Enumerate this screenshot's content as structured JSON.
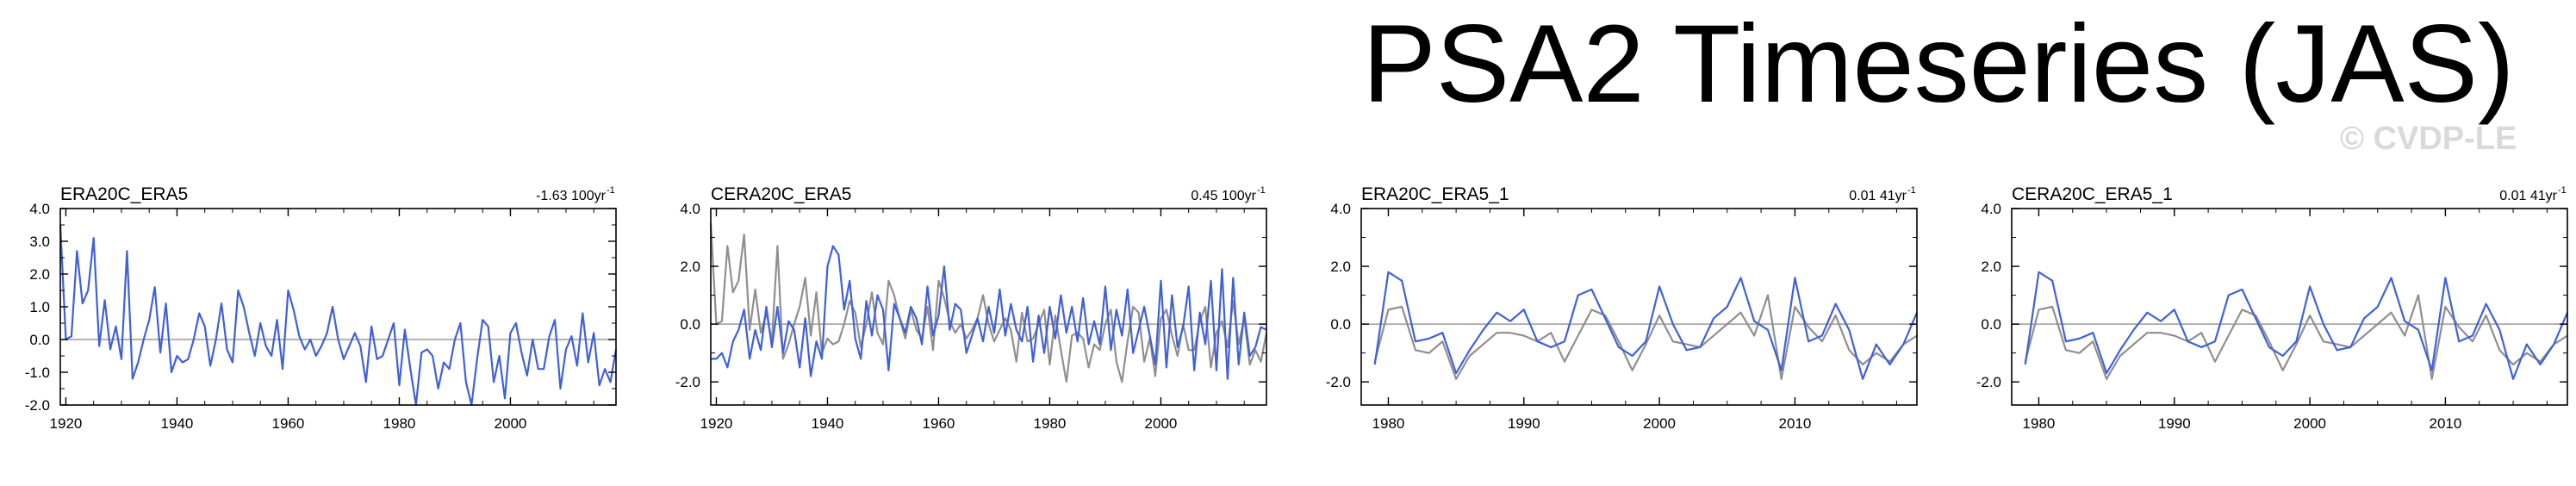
{
  "title": "PSA2 Timeseries (JAS)",
  "copyright": "© CVDP-LE",
  "colors": {
    "primary": "#4060d8",
    "secondary": "#8f8f8f",
    "zero_line": "#9a9a9a",
    "frame": "#000000"
  },
  "chart_data": [
    {
      "type": "line",
      "title": "ERA20C_ERA5",
      "trend": "-1.63 100yr",
      "trend_sup": "-1",
      "xlabel": "",
      "ylabel": "",
      "xlim": [
        1919,
        2019
      ],
      "ylim": [
        -2.0,
        4.0
      ],
      "xticks": [
        1920,
        1940,
        1960,
        1980,
        2000
      ],
      "yticks": [
        4.0,
        3.0,
        2.0,
        1.0,
        0.0,
        -1.0,
        -2.0
      ],
      "grid": false,
      "zero_line": true,
      "series": [
        {
          "role": "primary",
          "x": [
            1919,
            1920,
            1921,
            1922,
            1923,
            1924,
            1925,
            1926,
            1927,
            1928,
            1929,
            1930,
            1931,
            1932,
            1933,
            1934,
            1935,
            1936,
            1937,
            1938,
            1939,
            1940,
            1941,
            1942,
            1943,
            1944,
            1945,
            1946,
            1947,
            1948,
            1949,
            1950,
            1951,
            1952,
            1953,
            1954,
            1955,
            1956,
            1957,
            1958,
            1959,
            1960,
            1961,
            1962,
            1963,
            1964,
            1965,
            1966,
            1967,
            1968,
            1969,
            1970,
            1971,
            1972,
            1973,
            1974,
            1975,
            1976,
            1977,
            1978,
            1979,
            1980,
            1981,
            1982,
            1983,
            1984,
            1985,
            1986,
            1987,
            1988,
            1989,
            1990,
            1991,
            1992,
            1993,
            1994,
            1995,
            1996,
            1997,
            1998,
            1999,
            2000,
            2001,
            2002,
            2003,
            2004,
            2005,
            2006,
            2007,
            2008,
            2009,
            2010,
            2011,
            2012,
            2013,
            2014,
            2015,
            2016,
            2017,
            2018,
            2019
          ],
          "y": [
            3.5,
            0.0,
            0.1,
            2.7,
            1.1,
            1.5,
            3.1,
            -0.2,
            1.2,
            -0.3,
            0.4,
            -0.6,
            2.7,
            -1.2,
            -0.7,
            0.0,
            0.6,
            1.6,
            -0.4,
            1.1,
            -1.0,
            -0.5,
            -0.7,
            -0.6,
            0.0,
            0.8,
            0.4,
            -0.8,
            0.0,
            1.1,
            -0.3,
            -0.7,
            1.5,
            1.0,
            0.2,
            -0.5,
            0.5,
            -0.2,
            -0.5,
            0.6,
            -0.9,
            1.5,
            0.9,
            0.1,
            -0.3,
            0.0,
            -0.5,
            -0.2,
            0.2,
            1.0,
            0.0,
            -0.6,
            -0.2,
            0.2,
            -0.2,
            -1.3,
            0.4,
            -0.6,
            -0.5,
            0.0,
            0.5,
            -1.4,
            0.3,
            -0.9,
            -2.0,
            -0.4,
            -0.3,
            -0.5,
            -1.5,
            -0.7,
            -0.9,
            0.0,
            0.5,
            -1.3,
            -2.0,
            -0.6,
            0.6,
            0.4,
            -1.3,
            -0.5,
            -1.8,
            0.2,
            0.5,
            -0.4,
            -1.1,
            0.0,
            -0.9,
            -0.9,
            0.1,
            0.6,
            -1.5,
            -0.3,
            0.1,
            -0.8,
            0.8,
            -0.7,
            0.2,
            -1.4,
            -0.9,
            -1.3,
            -0.3
          ]
        }
      ]
    },
    {
      "type": "line",
      "title": "CERA20C_ERA5",
      "trend": "0.45 100yr",
      "trend_sup": "-1",
      "xlabel": "",
      "ylabel": "",
      "xlim": [
        1919,
        2019
      ],
      "ylim": [
        -2.8,
        4.0
      ],
      "xticks": [
        1920,
        1940,
        1960,
        1980,
        2000
      ],
      "yticks": [
        4.0,
        2.0,
        0.0,
        -2.0
      ],
      "grid": false,
      "zero_line": true,
      "series": [
        {
          "role": "secondary",
          "x": [
            1919,
            1920,
            1921,
            1922,
            1923,
            1924,
            1925,
            1926,
            1927,
            1928,
            1929,
            1930,
            1931,
            1932,
            1933,
            1934,
            1935,
            1936,
            1937,
            1938,
            1939,
            1940,
            1941,
            1942,
            1943,
            1944,
            1945,
            1946,
            1947,
            1948,
            1949,
            1950,
            1951,
            1952,
            1953,
            1954,
            1955,
            1956,
            1957,
            1958,
            1959,
            1960,
            1961,
            1962,
            1963,
            1964,
            1965,
            1966,
            1967,
            1968,
            1969,
            1970,
            1971,
            1972,
            1973,
            1974,
            1975,
            1976,
            1977,
            1978,
            1979,
            1980,
            1981,
            1982,
            1983,
            1984,
            1985,
            1986,
            1987,
            1988,
            1989,
            1990,
            1991,
            1992,
            1993,
            1994,
            1995,
            1996,
            1997,
            1998,
            1999,
            2000,
            2001,
            2002,
            2003,
            2004,
            2005,
            2006,
            2007,
            2008,
            2009,
            2010,
            2011,
            2012,
            2013,
            2014,
            2015,
            2016,
            2017,
            2018,
            2019
          ],
          "y": [
            3.5,
            0.0,
            0.1,
            2.7,
            1.1,
            1.5,
            3.1,
            -0.2,
            1.2,
            -0.3,
            0.4,
            -0.6,
            2.7,
            -1.2,
            -0.7,
            0.0,
            0.6,
            1.6,
            -0.4,
            1.1,
            -1.0,
            -0.5,
            -0.7,
            -0.6,
            0.0,
            0.8,
            0.4,
            -0.8,
            0.0,
            1.1,
            -0.3,
            -0.7,
            1.5,
            1.0,
            0.2,
            -0.5,
            0.5,
            -0.2,
            -0.5,
            0.6,
            -0.9,
            1.5,
            0.9,
            0.1,
            -0.3,
            0.0,
            -0.5,
            -0.2,
            0.2,
            1.0,
            0.0,
            -0.6,
            -0.2,
            0.2,
            -0.2,
            -1.3,
            0.4,
            -0.6,
            -0.5,
            0.0,
            0.5,
            -1.4,
            0.3,
            -0.9,
            -2.0,
            -0.4,
            -0.3,
            -0.5,
            -1.5,
            -0.7,
            -0.9,
            0.0,
            0.5,
            -1.3,
            -2.0,
            -0.6,
            0.6,
            0.4,
            -1.3,
            -0.5,
            -1.8,
            0.2,
            0.5,
            -0.4,
            -1.1,
            0.0,
            -0.9,
            -0.9,
            0.1,
            0.6,
            -1.5,
            -0.3,
            0.1,
            -0.8,
            0.8,
            -0.7,
            0.2,
            -1.4,
            -0.9,
            -1.3,
            -0.3
          ]
        },
        {
          "role": "primary",
          "x": [
            1919,
            1920,
            1921,
            1922,
            1923,
            1924,
            1925,
            1926,
            1927,
            1928,
            1929,
            1930,
            1931,
            1932,
            1933,
            1934,
            1935,
            1936,
            1937,
            1938,
            1939,
            1940,
            1941,
            1942,
            1943,
            1944,
            1945,
            1946,
            1947,
            1948,
            1949,
            1950,
            1951,
            1952,
            1953,
            1954,
            1955,
            1956,
            1957,
            1958,
            1959,
            1960,
            1961,
            1962,
            1963,
            1964,
            1965,
            1966,
            1967,
            1968,
            1969,
            1970,
            1971,
            1972,
            1973,
            1974,
            1975,
            1976,
            1977,
            1978,
            1979,
            1980,
            1981,
            1982,
            1983,
            1984,
            1985,
            1986,
            1987,
            1988,
            1989,
            1990,
            1991,
            1992,
            1993,
            1994,
            1995,
            1996,
            1997,
            1998,
            1999,
            2000,
            2001,
            2002,
            2003,
            2004,
            2005,
            2006,
            2007,
            2008,
            2009,
            2010,
            2011,
            2012,
            2013,
            2014,
            2015,
            2016,
            2017,
            2018,
            2019
          ],
          "y": [
            -1.2,
            -1.2,
            -1.0,
            -1.5,
            -0.6,
            -0.2,
            0.5,
            -1.2,
            -0.2,
            -0.9,
            0.6,
            -0.8,
            0.6,
            -1.0,
            0.1,
            -0.2,
            -1.5,
            0.2,
            -1.8,
            -0.6,
            -1.2,
            2.0,
            2.7,
            2.4,
            0.5,
            1.5,
            -0.5,
            -1.2,
            0.8,
            -0.4,
            1.0,
            0.5,
            -1.6,
            0.7,
            0.2,
            -0.3,
            0.6,
            0.2,
            -0.7,
            1.3,
            -0.4,
            0.3,
            2.0,
            -0.2,
            0.7,
            0.5,
            -1.0,
            -0.4,
            0.2,
            -0.6,
            0.6,
            -0.3,
            1.2,
            -0.4,
            0.7,
            -0.2,
            -0.6,
            0.6,
            -1.3,
            0.3,
            -1.0,
            0.6,
            -0.5,
            1.0,
            -0.3,
            0.6,
            -0.6,
            0.9,
            -0.7,
            0.1,
            -0.7,
            1.3,
            -0.9,
            0.5,
            -0.4,
            1.2,
            -1.0,
            -0.2,
            0.6,
            -0.4,
            -1.4,
            1.5,
            -1.5,
            1.0,
            -0.8,
            -0.1,
            1.3,
            -1.6,
            0.4,
            -0.7,
            1.5,
            -1.6,
            1.9,
            -1.9,
            1.6,
            -1.4,
            0.4,
            -1.1,
            -0.8,
            -0.1,
            -0.2
          ]
        }
      ]
    },
    {
      "type": "line",
      "title": "ERA20C_ERA5_1",
      "trend": "0.01 41yr",
      "trend_sup": "-1",
      "xlabel": "",
      "ylabel": "",
      "xlim": [
        1978,
        2019
      ],
      "ylim": [
        -2.8,
        4.0
      ],
      "xticks": [
        1980,
        1990,
        2000,
        2010
      ],
      "yticks": [
        4.0,
        2.0,
        0.0,
        -2.0
      ],
      "grid": false,
      "zero_line": true,
      "series": [
        {
          "role": "secondary",
          "x": [
            1979,
            1980,
            1981,
            1982,
            1983,
            1984,
            1985,
            1986,
            1987,
            1988,
            1989,
            1990,
            1991,
            1992,
            1993,
            1994,
            1995,
            1996,
            1997,
            1998,
            1999,
            2000,
            2001,
            2002,
            2003,
            2004,
            2005,
            2006,
            2007,
            2008,
            2009,
            2010,
            2011,
            2012,
            2013,
            2014,
            2015,
            2016,
            2017,
            2018,
            2019
          ],
          "y": [
            -1.3,
            0.5,
            0.6,
            -0.9,
            -1.0,
            -0.6,
            -1.9,
            -1.1,
            -0.7,
            -0.3,
            -0.3,
            -0.4,
            -0.6,
            -0.3,
            -1.3,
            -0.4,
            0.5,
            0.3,
            -0.6,
            -1.6,
            -0.7,
            0.3,
            -0.6,
            -0.7,
            -0.8,
            -0.4,
            0.0,
            0.4,
            -0.4,
            1.0,
            -1.9,
            0.6,
            -0.1,
            -0.6,
            0.3,
            -0.9,
            -1.4,
            -1.0,
            -1.3,
            -0.7,
            -0.4
          ]
        },
        {
          "role": "primary",
          "x": [
            1979,
            1980,
            1981,
            1982,
            1983,
            1984,
            1985,
            1986,
            1987,
            1988,
            1989,
            1990,
            1991,
            1992,
            1993,
            1994,
            1995,
            1996,
            1997,
            1998,
            1999,
            2000,
            2001,
            2002,
            2003,
            2004,
            2005,
            2006,
            2007,
            2008,
            2009,
            2010,
            2011,
            2012,
            2013,
            2014,
            2015,
            2016,
            2017,
            2018,
            2019
          ],
          "y": [
            -1.4,
            1.8,
            1.5,
            -0.6,
            -0.5,
            -0.3,
            -1.7,
            -0.9,
            -0.2,
            0.4,
            0.1,
            0.5,
            -0.6,
            -0.8,
            -0.6,
            1.0,
            1.2,
            0.2,
            -0.8,
            -1.1,
            -0.6,
            1.3,
            0.0,
            -0.9,
            -0.8,
            0.2,
            0.6,
            1.6,
            0.1,
            -0.2,
            -1.6,
            1.6,
            -0.6,
            -0.4,
            0.7,
            -0.2,
            -1.9,
            -0.7,
            -1.4,
            -0.7,
            0.4
          ]
        }
      ]
    },
    {
      "type": "line",
      "title": "CERA20C_ERA5_1",
      "trend": "0.01 41yr",
      "trend_sup": "-1",
      "xlabel": "",
      "ylabel": "",
      "xlim": [
        1978,
        2019
      ],
      "ylim": [
        -2.8,
        4.0
      ],
      "xticks": [
        1980,
        1990,
        2000,
        2010
      ],
      "yticks": [
        4.0,
        2.0,
        0.0,
        -2.0
      ],
      "grid": false,
      "zero_line": true,
      "series": [
        {
          "role": "secondary",
          "x": [
            1979,
            1980,
            1981,
            1982,
            1983,
            1984,
            1985,
            1986,
            1987,
            1988,
            1989,
            1990,
            1991,
            1992,
            1993,
            1994,
            1995,
            1996,
            1997,
            1998,
            1999,
            2000,
            2001,
            2002,
            2003,
            2004,
            2005,
            2006,
            2007,
            2008,
            2009,
            2010,
            2011,
            2012,
            2013,
            2014,
            2015,
            2016,
            2017,
            2018,
            2019
          ],
          "y": [
            -1.3,
            0.5,
            0.6,
            -0.9,
            -1.0,
            -0.6,
            -1.9,
            -1.1,
            -0.7,
            -0.3,
            -0.3,
            -0.4,
            -0.6,
            -0.3,
            -1.3,
            -0.4,
            0.5,
            0.3,
            -0.6,
            -1.6,
            -0.7,
            0.3,
            -0.6,
            -0.7,
            -0.8,
            -0.4,
            0.0,
            0.4,
            -0.4,
            1.0,
            -1.9,
            0.6,
            -0.1,
            -0.6,
            0.3,
            -0.9,
            -1.4,
            -1.0,
            -1.3,
            -0.7,
            -0.4
          ]
        },
        {
          "role": "primary",
          "x": [
            1979,
            1980,
            1981,
            1982,
            1983,
            1984,
            1985,
            1986,
            1987,
            1988,
            1989,
            1990,
            1991,
            1992,
            1993,
            1994,
            1995,
            1996,
            1997,
            1998,
            1999,
            2000,
            2001,
            2002,
            2003,
            2004,
            2005,
            2006,
            2007,
            2008,
            2009,
            2010,
            2011,
            2012,
            2013,
            2014,
            2015,
            2016,
            2017,
            2018,
            2019
          ],
          "y": [
            -1.4,
            1.8,
            1.5,
            -0.6,
            -0.5,
            -0.3,
            -1.7,
            -0.9,
            -0.2,
            0.4,
            0.1,
            0.5,
            -0.6,
            -0.8,
            -0.6,
            1.0,
            1.2,
            0.2,
            -0.8,
            -1.1,
            -0.6,
            1.3,
            0.0,
            -0.9,
            -0.8,
            0.2,
            0.6,
            1.6,
            0.1,
            -0.2,
            -1.6,
            1.6,
            -0.6,
            -0.4,
            0.7,
            -0.2,
            -1.9,
            -0.7,
            -1.4,
            -0.7,
            0.4
          ]
        }
      ]
    }
  ]
}
